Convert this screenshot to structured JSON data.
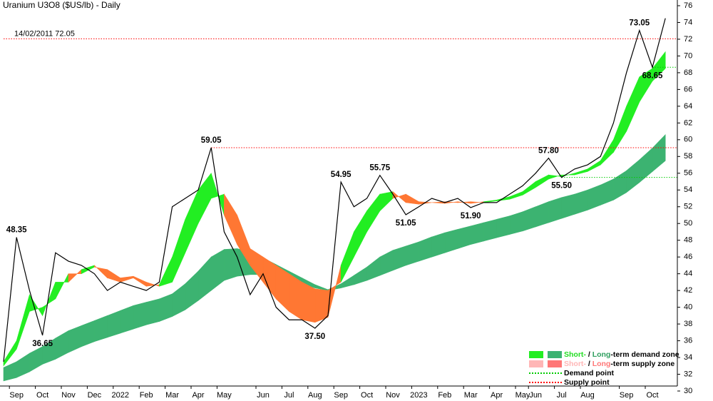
{
  "chart_data": {
    "type": "line",
    "title": "Uranium U3O8 ($US/lb) - Daily",
    "categories": [
      null,
      "Sep",
      null,
      "Oct",
      null,
      "Nov",
      null,
      "Dec",
      null,
      "2022",
      null,
      "Feb",
      null,
      "Mar",
      null,
      "Apr",
      null,
      "May",
      null,
      null,
      "Jun",
      null,
      "Jul",
      null,
      "Aug",
      null,
      "Sep",
      null,
      "Oct",
      null,
      "Nov",
      null,
      "2023",
      null,
      "Feb",
      null,
      "Mar",
      null,
      "Apr",
      null,
      "May",
      "Jun",
      null,
      "Jul",
      null,
      "Aug",
      null,
      null,
      "Sep",
      null,
      "Oct",
      null
    ],
    "series": [
      {
        "color": "#000000",
        "values": [
          33.5,
          48.35,
          42,
          36.65,
          46.5,
          45.5,
          45,
          44,
          42,
          43,
          42.5,
          42,
          43,
          52,
          53,
          54,
          59.05,
          49,
          46,
          41.5,
          44,
          40,
          38.5,
          38.5,
          37.5,
          39,
          54.95,
          52,
          53,
          55.75,
          53.5,
          51.05,
          52,
          53,
          52.5,
          53,
          51.9,
          52.5,
          52.5,
          53.5,
          54.5,
          56,
          57.8,
          55.5,
          56.5,
          57,
          58,
          62,
          68,
          73.05,
          68.65,
          74.5
        ],
        "value_labels": [
          null,
          "48.35",
          null,
          "36.65",
          null,
          null,
          null,
          null,
          null,
          null,
          null,
          null,
          null,
          null,
          null,
          null,
          "59.05",
          null,
          null,
          null,
          null,
          null,
          null,
          null,
          "37.50",
          null,
          "54.95",
          null,
          null,
          "55.75",
          null,
          "51.05",
          null,
          null,
          null,
          null,
          "51.90",
          null,
          null,
          null,
          null,
          null,
          "57.80",
          "55.50",
          null,
          null,
          null,
          null,
          null,
          "73.05",
          "68.65",
          null
        ]
      }
    ],
    "short_band": {
      "up_color": "#22ee22",
      "down_color": "#ff7733",
      "fast": [
        33.5,
        36,
        41.5,
        39,
        43,
        43,
        44.5,
        45,
        43.5,
        43,
        43.5,
        42.5,
        42.7,
        46,
        50.5,
        54,
        56,
        51,
        47.5,
        45,
        43,
        41,
        39.5,
        38.5,
        38.2,
        38.8,
        45,
        49,
        51.5,
        53.5,
        53.8,
        52.5,
        52.3,
        52.5,
        52.4,
        52.6,
        52.4,
        52.6,
        52.8,
        53.2,
        53.8,
        55,
        55.8,
        55.6,
        56,
        56.5,
        57.5,
        60,
        64,
        67.5,
        68.5,
        70.5
      ],
      "slow": [
        33,
        35,
        39.5,
        40,
        41,
        44,
        44,
        44.8,
        44.5,
        43.5,
        43.7,
        43,
        42.5,
        43,
        46.5,
        50,
        53,
        53.5,
        51,
        47,
        46,
        45,
        44,
        43,
        42.2,
        42,
        43,
        46,
        49,
        51.5,
        53,
        53.5,
        52.6,
        52.5,
        52.6,
        52.5,
        52.6,
        52.5,
        52.7,
        52.9,
        53.4,
        54.3,
        55.3,
        55.8,
        55.8,
        56.2,
        57,
        58.5,
        61,
        64.5,
        67,
        68.5
      ]
    },
    "long_band": {
      "color": "#3cb371",
      "upper": [
        32.8,
        33.5,
        34.5,
        35.3,
        36.3,
        37.2,
        37.8,
        38.4,
        39,
        39.6,
        40.2,
        40.6,
        41,
        41.6,
        42.8,
        44.3,
        46,
        46.9,
        47,
        46.6,
        45.9,
        45.1,
        44.3,
        43.5,
        42.7,
        42.1,
        42.8,
        43.8,
        44.8,
        46,
        46.8,
        47.3,
        47.8,
        48.4,
        48.9,
        49.3,
        49.7,
        50.1,
        50.5,
        50.9,
        51.4,
        52,
        52.6,
        53.1,
        53.5,
        54,
        54.6,
        55.3,
        56.3,
        57.6,
        59,
        60.6
      ],
      "lower": [
        31.2,
        31.6,
        32.3,
        33.2,
        33.8,
        34.6,
        35.3,
        35.9,
        36.4,
        36.9,
        37.4,
        37.9,
        38.3,
        38.9,
        39.7,
        40.8,
        42,
        43.2,
        43.7,
        43.9,
        43.9,
        43.6,
        43.2,
        42.8,
        42.3,
        42,
        42.3,
        42.7,
        43.2,
        43.8,
        44.4,
        45,
        45.5,
        46,
        46.5,
        47,
        47.5,
        47.9,
        48.3,
        48.7,
        49.1,
        49.6,
        50.1,
        50.6,
        51.1,
        51.6,
        52.2,
        52.8,
        53.7,
        54.9,
        56.2,
        57.5
      ]
    },
    "reference_lines": [
      {
        "value": 72.05,
        "from": 0,
        "color": "#ff0000",
        "label": "14/02/2011 72.05"
      },
      {
        "value": 59.05,
        "from": 16,
        "color": "#ff0000"
      },
      {
        "value": 68.65,
        "from": 50,
        "color": "#00cc00"
      },
      {
        "value": 55.5,
        "from": 43,
        "color": "#00cc00"
      }
    ],
    "ylim": [
      30,
      76
    ],
    "yticks": [
      30,
      32,
      34,
      36,
      38,
      40,
      42,
      44,
      46,
      48,
      50,
      52,
      54,
      56,
      58,
      60,
      62,
      64,
      66,
      68,
      70,
      72,
      74,
      76
    ],
    "legend": [
      {
        "swatches": [
          "#22ee22",
          "#3cb371"
        ],
        "parts": [
          {
            "text": "Short-",
            "color": "#22dd22"
          },
          {
            "text": " / "
          },
          {
            "text": "Long",
            "color": "#2e9e5e"
          },
          {
            "text": "-term demand zone"
          }
        ]
      },
      {
        "swatches": [
          "#ffb6b6",
          "#ff7777"
        ],
        "parts": [
          {
            "text": "Short-",
            "color": "#ffb6b6"
          },
          {
            "text": " / "
          },
          {
            "text": "Long",
            "color": "#ff7777"
          },
          {
            "text": "-term supply zone"
          }
        ]
      },
      {
        "line_color": "#00cc00",
        "parts": [
          {
            "text": "Demand point"
          }
        ]
      },
      {
        "line_color": "#ff0000",
        "parts": [
          {
            "text": "Supply point"
          }
        ]
      }
    ]
  }
}
